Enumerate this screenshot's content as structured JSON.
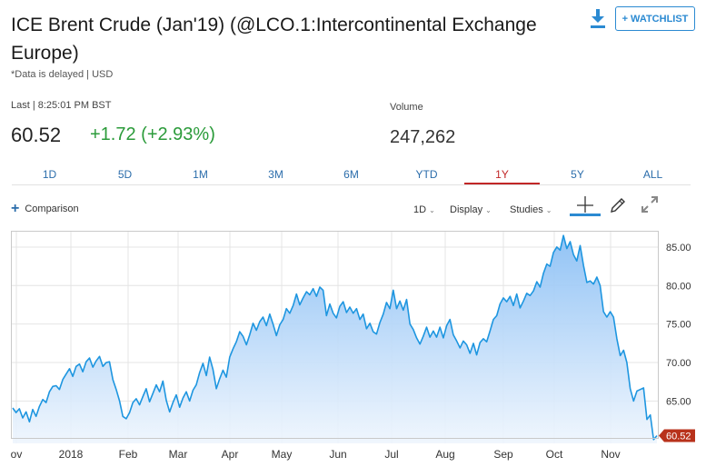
{
  "header": {
    "title": "ICE Brent Crude (Jan'19) (@LCO.1:Intercontinental Exchange Europe)",
    "delay_note": "*Data is delayed | USD",
    "watchlist_label": "+ WATCHLIST",
    "download_icon": "download-icon"
  },
  "quote": {
    "last_label": "Last | 8:25:01 PM BST",
    "price": "60.52",
    "change": "+1.72 (+2.93%)",
    "volume_label": "Volume",
    "volume": "247,262",
    "change_color": "#2b9b3a"
  },
  "tabs": [
    "1D",
    "5D",
    "1M",
    "3M",
    "6M",
    "YTD",
    "1Y",
    "5Y",
    "ALL"
  ],
  "active_tab": "1Y",
  "toolbar": {
    "comparison": "Comparison",
    "interval": "1D",
    "display": "Display",
    "studies": "Studies",
    "icons": [
      "crosshair-icon",
      "pencil-icon",
      "expand-icon"
    ]
  },
  "colors": {
    "accent": "#2b8ad2",
    "line": "#1e96e0",
    "active_tab": "#c12727",
    "last_price_tag": "#b8321b"
  },
  "chart_data": {
    "type": "area",
    "x_ticks": [
      "ov",
      "2018",
      "Feb",
      "Mar",
      "Apr",
      "May",
      "Jun",
      "Jul",
      "Aug",
      "Sep",
      "Oct",
      "Nov"
    ],
    "y_ticks": [
      "85.00",
      "80.00",
      "75.00",
      "70.00",
      "65.00"
    ],
    "ylim": [
      59.5,
      87
    ],
    "last_value_label": "60.52",
    "series": [
      {
        "values": [
          64.1,
          63.5,
          64.0,
          62.8,
          63.6,
          62.3,
          63.9,
          63.0,
          64.3,
          65.2,
          64.8,
          66.2,
          66.9,
          67.0,
          66.5,
          67.8,
          68.5,
          69.2,
          68.2,
          69.5,
          69.8,
          68.8,
          70.1,
          70.6,
          69.4,
          70.2,
          70.8,
          69.5,
          70.0,
          70.1,
          67.8,
          66.5,
          65.0,
          63.0,
          62.7,
          63.5,
          64.8,
          65.3,
          64.5,
          65.6,
          66.6,
          64.9,
          66.0,
          67.1,
          66.2,
          67.6,
          65.1,
          63.6,
          64.8,
          65.8,
          64.2,
          65.4,
          66.2,
          65.0,
          66.4,
          67.1,
          68.7,
          69.9,
          68.3,
          70.7,
          69.1,
          66.6,
          67.9,
          69.0,
          68.1,
          70.7,
          71.8,
          72.7,
          74.0,
          73.4,
          72.3,
          73.6,
          75.1,
          74.2,
          75.3,
          75.9,
          74.8,
          76.3,
          75.0,
          73.5,
          74.9,
          75.6,
          77.0,
          76.4,
          77.4,
          78.9,
          77.5,
          78.4,
          79.2,
          78.8,
          79.6,
          78.6,
          79.8,
          79.4,
          76.1,
          77.6,
          76.4,
          75.8,
          77.3,
          77.9,
          76.5,
          77.2,
          76.4,
          77.0,
          75.6,
          76.3,
          74.4,
          75.1,
          74.0,
          73.7,
          75.2,
          76.3,
          77.8,
          77.0,
          79.4,
          77.0,
          78.0,
          76.8,
          78.2,
          75.0,
          74.3,
          73.2,
          72.4,
          73.4,
          74.6,
          73.3,
          74.1,
          73.3,
          74.6,
          73.2,
          74.8,
          75.6,
          73.6,
          72.8,
          71.9,
          72.8,
          72.3,
          71.2,
          72.5,
          71.0,
          72.6,
          73.1,
          72.7,
          74.1,
          75.6,
          76.1,
          77.6,
          78.4,
          77.9,
          78.6,
          77.4,
          78.9,
          77.1,
          78.0,
          79.0,
          78.7,
          79.3,
          80.5,
          79.8,
          81.6,
          82.8,
          82.5,
          84.3,
          85.0,
          84.6,
          86.5,
          84.8,
          85.7,
          84.0,
          83.2,
          85.2,
          82.6,
          80.4,
          80.6,
          80.2,
          81.1,
          80.0,
          76.6,
          75.9,
          76.6,
          75.9,
          73.1,
          70.9,
          71.6,
          70.0,
          66.6,
          65.0,
          66.3,
          66.5,
          66.7,
          62.6,
          63.2,
          60.0,
          60.5
        ]
      }
    ]
  }
}
